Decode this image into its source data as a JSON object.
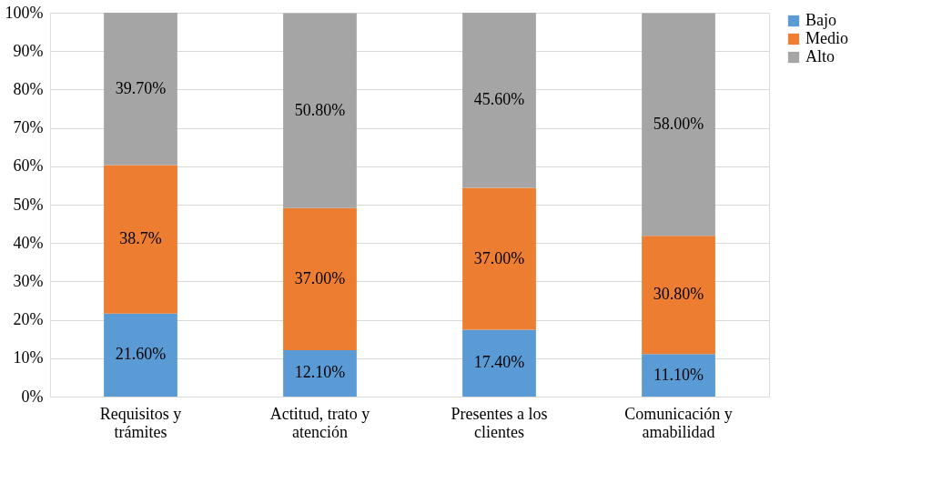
{
  "chart_data": {
    "type": "bar",
    "stacked": true,
    "categories": [
      "Requisitos y trámites",
      "Actitud, trato y atención",
      "Presentes a los clientes",
      "Comunicación y amabilidad"
    ],
    "series": [
      {
        "name": "Bajo",
        "color": "#5b9bd5",
        "values": [
          21.6,
          12.1,
          17.4,
          11.1
        ],
        "value_labels": [
          "21.60%",
          "12.10%",
          "17.40%",
          "11.10%"
        ]
      },
      {
        "name": "Medio",
        "color": "#ed7d31",
        "values": [
          38.7,
          37.0,
          37.0,
          30.8
        ],
        "value_labels": [
          "38.7%",
          "37.00%",
          "37.00%",
          "30.80%"
        ]
      },
      {
        "name": "Alto",
        "color": "#a5a5a5",
        "values": [
          39.7,
          50.8,
          45.6,
          58.0
        ],
        "value_labels": [
          "39.70%",
          "50.80%",
          "45.60%",
          "58.00%"
        ]
      }
    ],
    "ylim": [
      0,
      100
    ],
    "yticks": [
      {
        "value": 0,
        "label": "0%"
      },
      {
        "value": 10,
        "label": "10%"
      },
      {
        "value": 20,
        "label": "20%"
      },
      {
        "value": 30,
        "label": "30%"
      },
      {
        "value": 40,
        "label": "40%"
      },
      {
        "value": 50,
        "label": "50%"
      },
      {
        "value": 60,
        "label": "60%"
      },
      {
        "value": 70,
        "label": "70%"
      },
      {
        "value": 80,
        "label": "80%"
      },
      {
        "value": 90,
        "label": "90%"
      },
      {
        "value": 100,
        "label": "100%"
      }
    ],
    "grid": "y",
    "legend": "right"
  }
}
